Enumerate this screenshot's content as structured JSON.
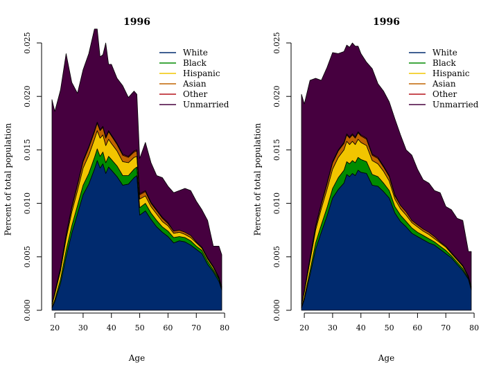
{
  "chart_data": [
    {
      "type": "area",
      "stacked": true,
      "title": "1996",
      "xlabel": "Age",
      "ylabel": "Percent of total population",
      "xlim": [
        19,
        79
      ],
      "ylim": [
        0,
        0.025
      ],
      "x_ticks": [
        "20",
        "30",
        "40",
        "50",
        "60",
        "70",
        "80"
      ],
      "y_ticks": [
        "0.000",
        "0.005",
        "0.010",
        "0.015",
        "0.020",
        "0.025"
      ],
      "legend_position": "top-right",
      "x": [
        19,
        20,
        22,
        24,
        26,
        28,
        30,
        32,
        34,
        35,
        36,
        37,
        38,
        39,
        40,
        42,
        44,
        46,
        48,
        49,
        50,
        52,
        54,
        56,
        58,
        60,
        62,
        64,
        66,
        68,
        70,
        72,
        74,
        76,
        78,
        79
      ],
      "series": [
        {
          "name": "White",
          "color": "#002a6e",
          "values": [
            0.0002,
            0.0008,
            0.0025,
            0.005,
            0.0072,
            0.009,
            0.0108,
            0.0118,
            0.0132,
            0.014,
            0.0133,
            0.0137,
            0.0128,
            0.0134,
            0.0131,
            0.0125,
            0.0117,
            0.0118,
            0.0124,
            0.0126,
            0.0089,
            0.0093,
            0.0085,
            0.0078,
            0.0073,
            0.0069,
            0.0063,
            0.0065,
            0.0064,
            0.0061,
            0.0057,
            0.0053,
            0.0043,
            0.0036,
            0.0027,
            0.0019
          ]
        },
        {
          "name": "Black",
          "color": "#008b00",
          "values": [
            0.0001,
            0.0002,
            0.0004,
            0.0006,
            0.0007,
            0.0008,
            0.0009,
            0.001,
            0.0011,
            0.0011,
            0.0011,
            0.0011,
            0.001,
            0.001,
            0.001,
            0.001,
            0.0009,
            0.0008,
            0.0008,
            0.0008,
            0.0007,
            0.0007,
            0.0006,
            0.0006,
            0.0005,
            0.0005,
            0.0005,
            0.0004,
            0.0004,
            0.0004,
            0.0003,
            0.0003,
            0.0003,
            0.0002,
            0.0002,
            0.0001
          ]
        },
        {
          "name": "Hispanic",
          "color": "#f2c500",
          "values": [
            0.0002,
            0.0005,
            0.0008,
            0.0011,
            0.0013,
            0.0014,
            0.0016,
            0.0017,
            0.0017,
            0.0017,
            0.0017,
            0.0016,
            0.0016,
            0.0016,
            0.0015,
            0.0014,
            0.0013,
            0.0012,
            0.0011,
            0.001,
            0.0008,
            0.0007,
            0.0006,
            0.0006,
            0.0005,
            0.0005,
            0.0004,
            0.0004,
            0.0003,
            0.0003,
            0.0003,
            0.0002,
            0.0002,
            0.0002,
            0.0001,
            0.0001
          ]
        },
        {
          "name": "Asian",
          "color": "#c06400",
          "values": [
            0.0001,
            0.0001,
            0.0002,
            0.0003,
            0.0004,
            0.0005,
            0.0006,
            0.0007,
            0.0007,
            0.0007,
            0.0007,
            0.0007,
            0.0007,
            0.0007,
            0.0007,
            0.0006,
            0.0006,
            0.0005,
            0.0005,
            0.0005,
            0.0004,
            0.0004,
            0.0003,
            0.0003,
            0.0003,
            0.0002,
            0.0002,
            0.0002,
            0.0002,
            0.0002,
            0.0001,
            0.0001,
            0.0001,
            0.0001,
            0.0001,
            0.0001
          ]
        },
        {
          "name": "Other",
          "color": "#b5121b",
          "values": [
            0.0,
            0.0001,
            0.0001,
            0.0001,
            0.0001,
            0.0001,
            0.0001,
            0.0001,
            0.0001,
            0.0001,
            0.0001,
            0.0001,
            0.0001,
            0.0001,
            0.0001,
            0.0001,
            0.0001,
            0.0001,
            0.0001,
            0.0001,
            0.0001,
            0.0001,
            0.0001,
            0.0001,
            0.0001,
            0.0001,
            0.0,
            0.0,
            0.0,
            0.0,
            0.0,
            0.0,
            0.0,
            0.0,
            0.0,
            0.0
          ]
        },
        {
          "name": "Unmarried",
          "color": "#46003f",
          "values": [
            0.0191,
            0.0169,
            0.0166,
            0.0169,
            0.0116,
            0.0085,
            0.0085,
            0.0087,
            0.0095,
            0.0087,
            0.0068,
            0.0067,
            0.0088,
            0.0062,
            0.0066,
            0.0061,
            0.0064,
            0.0055,
            0.0056,
            0.0052,
            0.0033,
            0.0045,
            0.0037,
            0.0032,
            0.0037,
            0.0034,
            0.0036,
            0.0037,
            0.0041,
            0.0042,
            0.0038,
            0.0035,
            0.0035,
            0.0019,
            0.0029,
            0.003
          ]
        }
      ]
    },
    {
      "type": "area",
      "stacked": true,
      "title": "1996",
      "xlabel": "Age",
      "ylabel": "Percent of total population",
      "xlim": [
        19,
        79
      ],
      "ylim": [
        0,
        0.025
      ],
      "x_ticks": [
        "20",
        "30",
        "40",
        "50",
        "60",
        "70",
        "80"
      ],
      "y_ticks": [
        "0.000",
        "0.005",
        "0.010",
        "0.015",
        "0.020",
        "0.025"
      ],
      "legend_position": "top-right",
      "x": [
        19,
        20,
        22,
        24,
        26,
        28,
        30,
        32,
        34,
        35,
        36,
        37,
        38,
        39,
        40,
        42,
        44,
        46,
        48,
        50,
        52,
        54,
        56,
        58,
        60,
        62,
        64,
        66,
        68,
        70,
        72,
        74,
        76,
        78,
        79
      ],
      "series": [
        {
          "name": "White",
          "color": "#002a6e",
          "values": [
            0.0002,
            0.001,
            0.0033,
            0.0057,
            0.0073,
            0.0088,
            0.0105,
            0.0113,
            0.0119,
            0.0127,
            0.0125,
            0.0128,
            0.0126,
            0.0131,
            0.0129,
            0.0128,
            0.0117,
            0.0116,
            0.0111,
            0.0105,
            0.0091,
            0.0083,
            0.0078,
            0.0072,
            0.0069,
            0.0066,
            0.0063,
            0.0061,
            0.0057,
            0.0053,
            0.0049,
            0.0043,
            0.0037,
            0.0029,
            0.0019
          ]
        },
        {
          "name": "Black",
          "color": "#008b00",
          "values": [
            0.0001,
            0.0002,
            0.0004,
            0.0006,
            0.0007,
            0.0008,
            0.0009,
            0.0011,
            0.0012,
            0.0012,
            0.0012,
            0.0012,
            0.0012,
            0.0012,
            0.0012,
            0.0011,
            0.001,
            0.0009,
            0.0008,
            0.0007,
            0.0006,
            0.0006,
            0.0005,
            0.0005,
            0.0004,
            0.0004,
            0.0004,
            0.0003,
            0.0003,
            0.0003,
            0.0002,
            0.0002,
            0.0002,
            0.0001,
            0.0001
          ]
        },
        {
          "name": "Hispanic",
          "color": "#f2c500",
          "values": [
            0.0002,
            0.0005,
            0.0009,
            0.0012,
            0.0015,
            0.0017,
            0.0018,
            0.0019,
            0.0019,
            0.0019,
            0.0018,
            0.0018,
            0.0017,
            0.0017,
            0.0016,
            0.0015,
            0.0013,
            0.0012,
            0.0011,
            0.0009,
            0.0007,
            0.0006,
            0.0006,
            0.0005,
            0.0005,
            0.0004,
            0.0004,
            0.0003,
            0.0003,
            0.0003,
            0.0002,
            0.0002,
            0.0002,
            0.0001,
            0.0001
          ]
        },
        {
          "name": "Asian",
          "color": "#c06400",
          "values": [
            0.0001,
            0.0001,
            0.0002,
            0.0003,
            0.0004,
            0.0005,
            0.0006,
            0.0006,
            0.0006,
            0.0006,
            0.0006,
            0.0006,
            0.0006,
            0.0006,
            0.0006,
            0.0006,
            0.0005,
            0.0005,
            0.0004,
            0.0004,
            0.0003,
            0.0003,
            0.0003,
            0.0002,
            0.0002,
            0.0002,
            0.0002,
            0.0002,
            0.0001,
            0.0001,
            0.0001,
            0.0001,
            0.0001,
            0.0001,
            0.0001
          ]
        },
        {
          "name": "Other",
          "color": "#b5121b",
          "values": [
            0.0,
            0.0001,
            0.0001,
            0.0001,
            0.0001,
            0.0001,
            0.0001,
            0.0001,
            0.0001,
            0.0001,
            0.0001,
            0.0001,
            0.0001,
            0.0001,
            0.0001,
            0.0001,
            0.0001,
            0.0001,
            0.0001,
            0.0001,
            0.0001,
            0.0,
            0.0,
            0.0,
            0.0,
            0.0,
            0.0,
            0.0,
            0.0,
            0.0,
            0.0,
            0.0,
            0.0,
            0.0,
            0.0
          ]
        },
        {
          "name": "Unmarried",
          "color": "#46003f",
          "values": [
            0.0196,
            0.0174,
            0.0166,
            0.0138,
            0.0115,
            0.0108,
            0.0102,
            0.009,
            0.0085,
            0.0083,
            0.0084,
            0.0085,
            0.0085,
            0.008,
            0.0076,
            0.0071,
            0.008,
            0.0069,
            0.007,
            0.0069,
            0.0071,
            0.0066,
            0.0058,
            0.0061,
            0.0052,
            0.0046,
            0.0046,
            0.0043,
            0.0046,
            0.0037,
            0.004,
            0.0038,
            0.0042,
            0.0023,
            0.0033
          ]
        }
      ]
    }
  ]
}
